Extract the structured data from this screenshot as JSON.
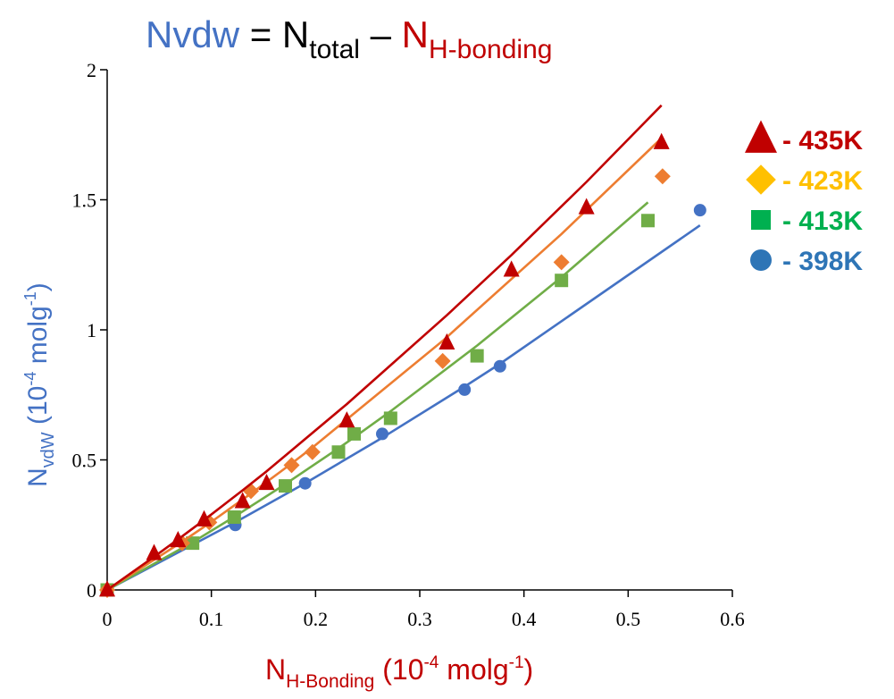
{
  "title": {
    "part1": "Nvdw",
    "eq": " = ",
    "n_total_main": "N",
    "n_total_sub": "total",
    "minus": " – ",
    "n_hb_main": "N",
    "n_hb_sub": "H-bonding",
    "color_nvdw": "#4472c4",
    "color_black": "#000000",
    "color_hb": "#c00000"
  },
  "ylabel": {
    "main": "N",
    "sub": "vdW",
    "unit_open": " (10",
    "unit_exp": "-4",
    "unit_mid": " molg",
    "unit_exp2": "-1",
    "unit_close": ")",
    "color": "#4472c4"
  },
  "xlabel": {
    "main": "N",
    "sub": "H-Bonding",
    "unit_open": " (10",
    "unit_exp": "-4",
    "unit_mid": " molg",
    "unit_exp2": "-1",
    "unit_close": ")",
    "color": "#c00000"
  },
  "chart_data": {
    "type": "scatter",
    "xlim": [
      0,
      0.6
    ],
    "ylim": [
      0,
      2
    ],
    "xticks": [
      0,
      0.1,
      0.2,
      0.3,
      0.4,
      0.5,
      0.6
    ],
    "xtick_labels": [
      "0",
      "0.1",
      "0.2",
      "0.3",
      "0.4",
      "0.5",
      "0.6"
    ],
    "yticks": [
      0,
      0.5,
      1,
      1.5,
      2
    ],
    "ytick_labels": [
      "0",
      "0.5",
      "1",
      "1.5",
      "2"
    ],
    "grid": false,
    "legend_position": "right",
    "series": [
      {
        "name": "- 435K",
        "marker": "triangle",
        "marker_color": "#c00000",
        "line_color": "#c00000",
        "label_color": "#c00000",
        "x": [
          0,
          0.045,
          0.068,
          0.093,
          0.13,
          0.153,
          0.23,
          0.326,
          0.388,
          0.46,
          0.532
        ],
        "y": [
          0,
          0.14,
          0.19,
          0.27,
          0.34,
          0.41,
          0.65,
          0.95,
          1.23,
          1.47,
          1.72
        ],
        "fit_y": [
          0,
          0.1275,
          0.1944,
          0.2688,
          0.3831,
          0.4559,
          0.7143,
          1.0561,
          1.2875,
          1.5689,
          1.8631
        ]
      },
      {
        "name": "- 423K",
        "marker": "diamond",
        "marker_color": "#ed7d31",
        "line_color": "#ed7d31",
        "label_color": "#ffc000",
        "x": [
          0,
          0.072,
          0.098,
          0.138,
          0.177,
          0.197,
          0.322,
          0.436,
          0.533
        ],
        "y": [
          0,
          0.18,
          0.26,
          0.38,
          0.48,
          0.53,
          0.88,
          1.26,
          1.59
        ],
        "fit_y": [
          0,
          0.1854,
          0.2565,
          0.3703,
          0.4863,
          0.5474,
          0.9577,
          1.3684,
          1.7407
        ]
      },
      {
        "name": "- 413K",
        "marker": "square",
        "marker_color": "#70ad47",
        "line_color": "#70ad47",
        "label_color": "#00b050",
        "x": [
          0,
          0.082,
          0.122,
          0.171,
          0.222,
          0.237,
          0.272,
          0.355,
          0.436,
          0.519
        ],
        "y": [
          0,
          0.18,
          0.28,
          0.4,
          0.53,
          0.6,
          0.66,
          0.9,
          1.19,
          1.42
        ],
        "fit_y": [
          0,
          0.1836,
          0.2811,
          0.4069,
          0.5447,
          0.5867,
          0.6871,
          0.9396,
          1.2023,
          1.4902
        ]
      },
      {
        "name": "- 398K",
        "marker": "circle",
        "marker_color": "#4472c4",
        "line_color": "#4472c4",
        "label_color": "#2e75b6",
        "x": [
          0,
          0.123,
          0.19,
          0.264,
          0.343,
          0.377,
          0.569
        ],
        "y": [
          0,
          0.25,
          0.41,
          0.6,
          0.77,
          0.86,
          1.46
        ],
        "fit_y": [
          0,
          0.2605,
          0.4102,
          0.5851,
          0.7817,
          0.8695,
          1.4016
        ]
      }
    ]
  }
}
